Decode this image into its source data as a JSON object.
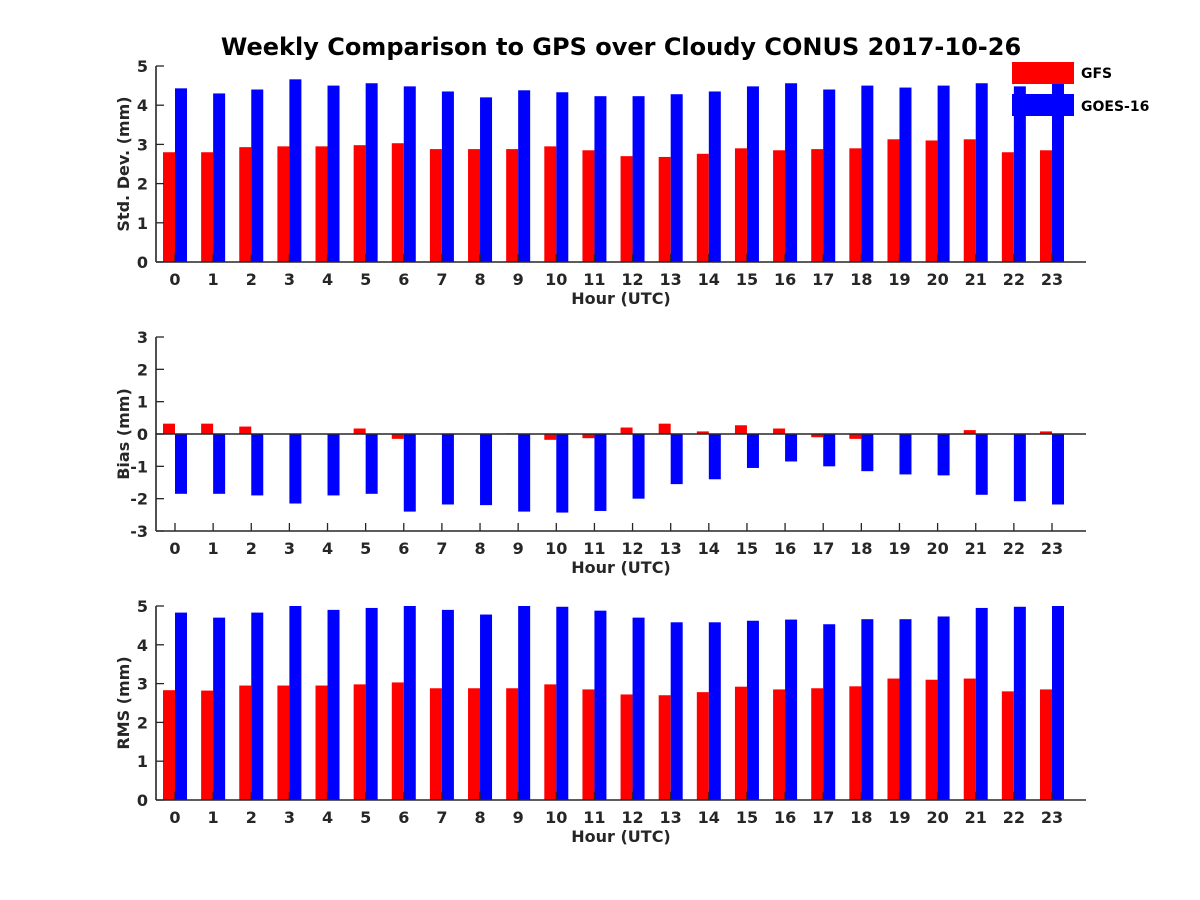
{
  "chart_data": [
    {
      "type": "bar",
      "title": "Weekly Comparison to GPS over Cloudy CONUS 2017-10-26",
      "xlabel": "Hour (UTC)",
      "ylabel": "Std. Dev. (mm)",
      "ylim": [
        0,
        5
      ],
      "yticks": [
        0,
        1,
        2,
        3,
        4,
        5
      ],
      "categories": [
        "0",
        "1",
        "2",
        "3",
        "4",
        "5",
        "6",
        "7",
        "8",
        "9",
        "10",
        "11",
        "12",
        "13",
        "14",
        "15",
        "16",
        "17",
        "18",
        "19",
        "20",
        "21",
        "22",
        "23"
      ],
      "series": [
        {
          "name": "GFS",
          "color": "#ff0000",
          "values": [
            2.8,
            2.8,
            2.93,
            2.95,
            2.95,
            2.98,
            3.03,
            2.88,
            2.88,
            2.88,
            2.95,
            2.85,
            2.7,
            2.68,
            2.76,
            2.9,
            2.85,
            2.88,
            2.9,
            3.13,
            3.1,
            3.13,
            2.8,
            2.85
          ]
        },
        {
          "name": "GOES-16",
          "color": "#0000ff",
          "values": [
            4.43,
            4.3,
            4.4,
            4.66,
            4.5,
            4.56,
            4.48,
            4.35,
            4.2,
            4.38,
            4.33,
            4.23,
            4.23,
            4.28,
            4.35,
            4.48,
            4.56,
            4.4,
            4.5,
            4.45,
            4.5,
            4.56,
            4.48,
            4.56
          ]
        }
      ],
      "legend": "top-right",
      "grid": false
    },
    {
      "type": "bar",
      "xlabel": "Hour (UTC)",
      "ylabel": "Bias (mm)",
      "ylim": [
        -3,
        3
      ],
      "yticks": [
        -3,
        -2,
        -1,
        0,
        1,
        2,
        3
      ],
      "categories": [
        "0",
        "1",
        "2",
        "3",
        "4",
        "5",
        "6",
        "7",
        "8",
        "9",
        "10",
        "11",
        "12",
        "13",
        "14",
        "15",
        "16",
        "17",
        "18",
        "19",
        "20",
        "21",
        "22",
        "23"
      ],
      "series": [
        {
          "name": "GFS",
          "color": "#ff0000",
          "values": [
            0.32,
            0.32,
            0.23,
            0.0,
            0.0,
            0.17,
            -0.15,
            0.0,
            0.0,
            0.02,
            -0.18,
            -0.13,
            0.2,
            0.32,
            0.08,
            0.27,
            0.17,
            -0.1,
            -0.15,
            0.0,
            0.0,
            0.12,
            0.0,
            0.08
          ]
        },
        {
          "name": "GOES-16",
          "color": "#0000ff",
          "values": [
            -1.85,
            -1.85,
            -1.9,
            -2.15,
            -1.9,
            -1.85,
            -2.4,
            -2.18,
            -2.2,
            -2.4,
            -2.43,
            -2.38,
            -2.0,
            -1.55,
            -1.4,
            -1.05,
            -0.85,
            -1.0,
            -1.15,
            -1.25,
            -1.28,
            -1.88,
            -2.08,
            -2.18
          ]
        }
      ],
      "grid": false
    },
    {
      "type": "bar",
      "xlabel": "Hour (UTC)",
      "ylabel": "RMS (mm)",
      "ylim": [
        0,
        5
      ],
      "yticks": [
        0,
        1,
        2,
        3,
        4,
        5
      ],
      "categories": [
        "0",
        "1",
        "2",
        "3",
        "4",
        "5",
        "6",
        "7",
        "8",
        "9",
        "10",
        "11",
        "12",
        "13",
        "14",
        "15",
        "16",
        "17",
        "18",
        "19",
        "20",
        "21",
        "22",
        "23"
      ],
      "series": [
        {
          "name": "GFS",
          "color": "#ff0000",
          "values": [
            2.83,
            2.82,
            2.95,
            2.95,
            2.95,
            2.98,
            3.03,
            2.88,
            2.88,
            2.88,
            2.98,
            2.85,
            2.72,
            2.7,
            2.78,
            2.92,
            2.85,
            2.88,
            2.93,
            3.13,
            3.1,
            3.13,
            2.8,
            2.85
          ]
        },
        {
          "name": "GOES-16",
          "color": "#0000ff",
          "values": [
            4.83,
            4.7,
            4.83,
            5.0,
            4.9,
            4.95,
            5.0,
            4.9,
            4.78,
            5.0,
            4.98,
            4.88,
            4.7,
            4.58,
            4.58,
            4.62,
            4.65,
            4.53,
            4.66,
            4.66,
            4.73,
            4.95,
            4.98,
            5.0
          ]
        }
      ],
      "grid": false
    }
  ]
}
